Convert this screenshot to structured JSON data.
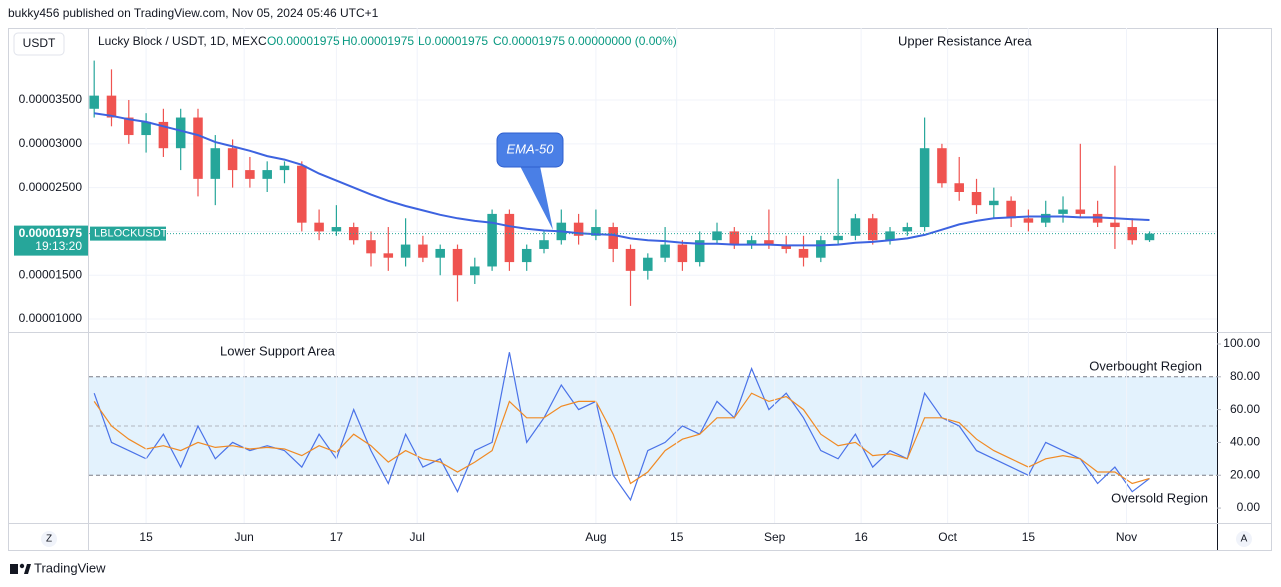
{
  "header": {
    "byline": "bukky456 published on TradingView.com, Nov 05, 2024 05:46 UTC+1",
    "brand": "TradingView",
    "axis_buttons": [
      "Z",
      "A"
    ]
  },
  "chart_data": [
    {
      "type": "candlestick",
      "title": "Lucky Block / USDT, 1D, MEXC",
      "ohlc_legend": [
        "O0.00001975",
        "H0.00001975",
        "L0.00001975",
        "C0.00001975",
        "0.00000000 (0.00%)"
      ],
      "currency": "USDT",
      "symbol": "LBLOCKUSDT",
      "countdown": "19:13:20",
      "last_price": 1.975e-05,
      "up_color": "#26a69a",
      "down_color": "#ef5350",
      "annotations": [
        "Upper Resistance Area"
      ],
      "open": [
        3.4e-05,
        3.55e-05,
        3.3e-05,
        3.1e-05,
        3.25e-05,
        2.95e-05,
        3.3e-05,
        2.6e-05,
        2.95e-05,
        2.7e-05,
        2.6e-05,
        2.7e-05,
        2.75e-05,
        2.1e-05,
        2e-05,
        2.05e-05,
        1.9e-05,
        1.75e-05,
        1.7e-05,
        1.85e-05,
        1.7e-05,
        1.8e-05,
        1.5e-05,
        1.6e-05,
        2.2e-05,
        1.65e-05,
        1.8e-05,
        1.9e-05,
        2.1e-05,
        1.95e-05,
        2.05e-05,
        1.8e-05,
        1.55e-05,
        1.7e-05,
        1.85e-05,
        1.65e-05,
        1.9e-05,
        2e-05,
        1.85e-05,
        1.9e-05,
        1.85e-05,
        1.8e-05,
        1.7e-05,
        1.9e-05,
        1.95e-05,
        2.15e-05,
        1.9e-05,
        2e-05,
        2.05e-05,
        2.95e-05,
        2.55e-05,
        2.45e-05,
        2.3e-05,
        2.35e-05,
        2.15e-05,
        2.1e-05,
        2.2e-05,
        2.25e-05,
        2.2e-05,
        2.1e-05,
        2.05e-05,
        1.9e-05
      ],
      "high": [
        3.95e-05,
        3.85e-05,
        3.5e-05,
        3.35e-05,
        3.4e-05,
        3.4e-05,
        3.4e-05,
        3.1e-05,
        3.05e-05,
        2.85e-05,
        2.8e-05,
        2.8e-05,
        2.8e-05,
        2.25e-05,
        2.3e-05,
        2.1e-05,
        2e-05,
        2.05e-05,
        2.15e-05,
        1.95e-05,
        1.85e-05,
        1.85e-05,
        1.7e-05,
        2.25e-05,
        2.25e-05,
        1.85e-05,
        2e-05,
        2.25e-05,
        2.2e-05,
        2.25e-05,
        2.1e-05,
        1.85e-05,
        1.75e-05,
        2.05e-05,
        1.9e-05,
        2e-05,
        2.1e-05,
        2.05e-05,
        1.95e-05,
        2.25e-05,
        1.95e-05,
        1.95e-05,
        1.95e-05,
        2.6e-05,
        2.2e-05,
        2.2e-05,
        2.05e-05,
        2.1e-05,
        3.3e-05,
        3e-05,
        2.85e-05,
        2.6e-05,
        2.5e-05,
        2.4e-05,
        2.25e-05,
        2.35e-05,
        2.4e-05,
        3e-05,
        2.35e-05,
        2.75e-05,
        2.15e-05,
        2e-05
      ],
      "low": [
        3.3e-05,
        3.2e-05,
        3e-05,
        2.9e-05,
        2.85e-05,
        2.7e-05,
        2.4e-05,
        2.3e-05,
        2.5e-05,
        2.5e-05,
        2.45e-05,
        2.55e-05,
        2e-05,
        1.9e-05,
        1.95e-05,
        1.85e-05,
        1.6e-05,
        1.55e-05,
        1.6e-05,
        1.65e-05,
        1.5e-05,
        1.2e-05,
        1.4e-05,
        1.55e-05,
        1.55e-05,
        1.55e-05,
        1.75e-05,
        1.85e-05,
        1.85e-05,
        1.9e-05,
        1.65e-05,
        1.15e-05,
        1.45e-05,
        1.65e-05,
        1.55e-05,
        1.6e-05,
        1.85e-05,
        1.8e-05,
        1.8e-05,
        1.8e-05,
        1.75e-05,
        1.6e-05,
        1.65e-05,
        1.85e-05,
        1.9e-05,
        1.85e-05,
        1.85e-05,
        1.95e-05,
        2e-05,
        2.5e-05,
        2.35e-05,
        2.2e-05,
        2.15e-05,
        2.05e-05,
        2e-05,
        2.05e-05,
        2.1e-05,
        2.15e-05,
        2.05e-05,
        1.8e-05,
        1.85e-05,
        1.88e-05
      ],
      "close": [
        3.55e-05,
        3.3e-05,
        3.1e-05,
        3.25e-05,
        2.95e-05,
        3.3e-05,
        2.6e-05,
        2.95e-05,
        2.7e-05,
        2.6e-05,
        2.7e-05,
        2.75e-05,
        2.1e-05,
        2e-05,
        2.05e-05,
        1.9e-05,
        1.75e-05,
        1.7e-05,
        1.85e-05,
        1.7e-05,
        1.8e-05,
        1.5e-05,
        1.6e-05,
        2.2e-05,
        1.65e-05,
        1.8e-05,
        1.9e-05,
        2.1e-05,
        1.95e-05,
        2.05e-05,
        1.8e-05,
        1.55e-05,
        1.7e-05,
        1.85e-05,
        1.65e-05,
        1.9e-05,
        2e-05,
        1.85e-05,
        1.9e-05,
        1.85e-05,
        1.8e-05,
        1.7e-05,
        1.9e-05,
        1.95e-05,
        2.15e-05,
        1.9e-05,
        2e-05,
        2.05e-05,
        2.95e-05,
        2.55e-05,
        2.45e-05,
        2.3e-05,
        2.35e-05,
        2.15e-05,
        2.1e-05,
        2.2e-05,
        2.25e-05,
        2.2e-05,
        2.1e-05,
        2.05e-05,
        1.9e-05,
        1.975e-05
      ],
      "series": [
        {
          "name": "EMA-50",
          "color": "#3d63e0",
          "values": [
            3.35e-05,
            3.32e-05,
            3.28e-05,
            3.25e-05,
            3.2e-05,
            3.15e-05,
            3.1e-05,
            3.02e-05,
            2.97e-05,
            2.92e-05,
            2.86e-05,
            2.82e-05,
            2.76e-05,
            2.66e-05,
            2.58e-05,
            2.5e-05,
            2.42e-05,
            2.35e-05,
            2.29e-05,
            2.24e-05,
            2.19e-05,
            2.15e-05,
            2.12e-05,
            2.1e-05,
            2.06e-05,
            2.03e-05,
            2.01e-05,
            2e-05,
            1.98e-05,
            1.97e-05,
            1.96e-05,
            1.92e-05,
            1.9e-05,
            1.89e-05,
            1.87e-05,
            1.86e-05,
            1.86e-05,
            1.85e-05,
            1.85e-05,
            1.85e-05,
            1.84e-05,
            1.84e-05,
            1.84e-05,
            1.85e-05,
            1.87e-05,
            1.88e-05,
            1.9e-05,
            1.92e-05,
            1.96e-05,
            2.02e-05,
            2.08e-05,
            2.12e-05,
            2.15e-05,
            2.16e-05,
            2.17e-05,
            2.17e-05,
            2.17e-05,
            2.16e-05,
            2.16e-05,
            2.15e-05,
            2.14e-05,
            2.13e-05
          ]
        }
      ],
      "ylim": [
        8.52e-06,
        4.322e-05
      ],
      "yticks": [
        {
          "value": 1e-05,
          "label": "0.00001000"
        },
        {
          "value": 1.5e-05,
          "label": "0.00001500"
        },
        {
          "value": 2e-05,
          "label": "0.00002000"
        },
        {
          "value": 2.5e-05,
          "label": "0.00002500"
        },
        {
          "value": 3e-05,
          "label": "0.00003000"
        },
        {
          "value": 3.5e-05,
          "label": "0.00003500"
        }
      ],
      "xlim": [
        -0.3,
        64.9
      ],
      "xticks": [
        {
          "value": 3,
          "label": "15"
        },
        {
          "value": 8.67,
          "label": "Jun"
        },
        {
          "value": 14,
          "label": "17"
        },
        {
          "value": 18.67,
          "label": "Jul"
        },
        {
          "value": 29,
          "label": "Aug"
        },
        {
          "value": 33.67,
          "label": "15"
        },
        {
          "value": 39.33,
          "label": "Sep"
        },
        {
          "value": 44.33,
          "label": "16"
        },
        {
          "value": 49.33,
          "label": "Oct"
        },
        {
          "value": 54,
          "label": "15"
        },
        {
          "value": 59.67,
          "label": "Nov"
        }
      ]
    },
    {
      "type": "line",
      "annotations": [
        "Lower Support Area",
        "Overbought Region",
        "Oversold Region"
      ],
      "series": [
        {
          "color": "#4a72e8",
          "values": [
            70,
            40,
            35,
            30,
            45,
            25,
            50,
            30,
            40,
            35,
            38,
            35,
            25,
            45,
            30,
            60,
            35,
            15,
            45,
            25,
            30,
            10,
            35,
            40,
            95,
            40,
            55,
            75,
            60,
            65,
            20,
            5,
            35,
            40,
            50,
            45,
            65,
            55,
            85,
            60,
            70,
            55,
            35,
            30,
            45,
            25,
            35,
            30,
            70,
            55,
            50,
            35,
            30,
            25,
            20,
            40,
            35,
            30,
            15,
            25,
            10,
            18
          ]
        },
        {
          "color": "#f08a24",
          "values": [
            65,
            50,
            42,
            36,
            38,
            35,
            40,
            37,
            38,
            36,
            37,
            36,
            32,
            38,
            34,
            45,
            38,
            28,
            35,
            30,
            28,
            22,
            28,
            35,
            65,
            55,
            55,
            62,
            65,
            65,
            45,
            15,
            22,
            35,
            42,
            45,
            55,
            55,
            70,
            65,
            68,
            60,
            45,
            38,
            40,
            32,
            33,
            30,
            55,
            55,
            52,
            42,
            35,
            30,
            25,
            30,
            32,
            30,
            22,
            22,
            15,
            18
          ]
        }
      ],
      "band": [
        20,
        80
      ],
      "midline": 50,
      "band_color": "#e3f2fd",
      "ylim": [
        -9.1,
        106.7
      ],
      "yticks": [
        {
          "value": 0,
          "label": "0.00"
        },
        {
          "value": 20,
          "label": "20.00"
        },
        {
          "value": 40,
          "label": "40.00"
        },
        {
          "value": 60,
          "label": "60.00"
        },
        {
          "value": 80,
          "label": "80.00"
        },
        {
          "value": 100,
          "label": "100.00"
        }
      ]
    }
  ]
}
